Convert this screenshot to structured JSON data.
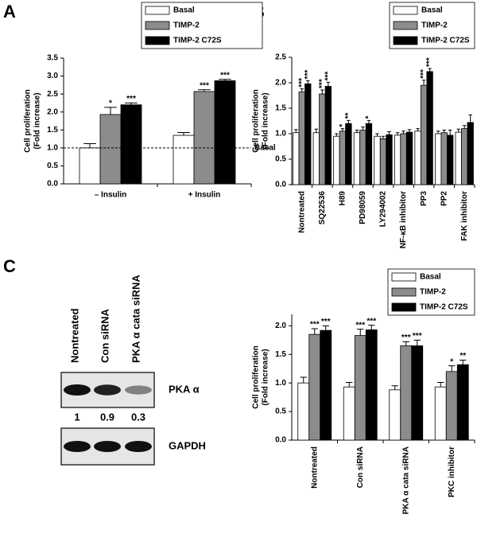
{
  "panel_labels": [
    "A",
    "B",
    "C"
  ],
  "chart_data": [
    {
      "type": "bar",
      "ylabel": [
        "Cell proliferation",
        "(Fold increase)"
      ],
      "categories": [
        "– Insulin",
        "+ Insulin"
      ],
      "series": [
        {
          "name": "Basal",
          "color": "#ffffff",
          "values": [
            1.0,
            1.35
          ],
          "errors": [
            0.12,
            0.08
          ],
          "stars": [
            null,
            null
          ]
        },
        {
          "name": "TIMP-2",
          "color": "#8c8c8c",
          "values": [
            1.93,
            2.57
          ],
          "errors": [
            0.2,
            0.05
          ],
          "stars": [
            "*",
            "***"
          ]
        },
        {
          "name": "TIMP-2 C72S",
          "color": "#000000",
          "values": [
            2.2,
            2.87
          ],
          "errors": [
            0.05,
            0.04
          ],
          "stars": [
            "***",
            "***"
          ]
        }
      ],
      "reference_line": {
        "value": 1.0,
        "label": "Basal"
      },
      "ylim": [
        0,
        3.5
      ],
      "yticks": [
        {
          "value": 0,
          "label": "0.0"
        },
        {
          "value": 0.5,
          "label": "0.5"
        },
        {
          "value": 1,
          "label": "1.0"
        },
        {
          "value": 1.5,
          "label": "1.5"
        },
        {
          "value": 2,
          "label": "2.0"
        },
        {
          "value": 2.5,
          "label": "2.5"
        },
        {
          "value": 3,
          "label": "3.0"
        },
        {
          "value": 3.5,
          "label": "3.5"
        }
      ]
    },
    {
      "type": "bar",
      "ylabel": [
        "Cell proliferation",
        "(Fold increase)"
      ],
      "categories": [
        "Nontreated",
        "SQ22536",
        "H89",
        "PD98059",
        "LY294002",
        "NF-κB inhibitor",
        "PP3",
        "PP2",
        "FAK inhibitor"
      ],
      "series": [
        {
          "name": "Basal",
          "color": "#ffffff",
          "values": [
            1.02,
            1.02,
            0.95,
            1.02,
            0.95,
            0.97,
            1.05,
            1.0,
            1.03
          ],
          "errors": [
            0.06,
            0.07,
            0.05,
            0.05,
            0.05,
            0.05,
            0.05,
            0.05,
            0.06
          ],
          "stars": [
            null,
            null,
            null,
            null,
            null,
            null,
            null,
            null,
            null
          ]
        },
        {
          "name": "TIMP-2",
          "color": "#8c8c8c",
          "values": [
            1.82,
            1.78,
            1.05,
            1.07,
            0.9,
            1.0,
            1.95,
            1.02,
            1.1
          ],
          "errors": [
            0.06,
            0.08,
            0.05,
            0.06,
            0.05,
            0.05,
            0.1,
            0.05,
            0.06
          ],
          "stars": [
            "***",
            "***",
            "*",
            null,
            null,
            null,
            "***",
            null,
            null
          ]
        },
        {
          "name": "TIMP-2 C72S",
          "color": "#000000",
          "values": [
            1.98,
            1.93,
            1.2,
            1.2,
            0.98,
            1.03,
            2.22,
            0.97,
            1.22
          ],
          "errors": [
            0.06,
            0.08,
            0.06,
            0.06,
            0.06,
            0.05,
            0.06,
            0.1,
            0.15
          ],
          "stars": [
            "***",
            "***",
            "**",
            "*",
            null,
            null,
            "***",
            null,
            null
          ]
        }
      ],
      "ylim": [
        0,
        2.5
      ],
      "yticks": [
        {
          "value": 0,
          "label": "0.0"
        },
        {
          "value": 0.5,
          "label": "0.5"
        },
        {
          "value": 1,
          "label": "1.0"
        },
        {
          "value": 1.5,
          "label": "1.5"
        },
        {
          "value": 2,
          "label": "2.0"
        },
        {
          "value": 2.5,
          "label": "2.5"
        }
      ]
    },
    {
      "type": "bar",
      "ylabel": [
        "Cell proliferation",
        "(Fold increase)"
      ],
      "categories": [
        "Nontreated",
        "Con siRNA",
        "PKA α cata siRNA",
        "PKC inhibitor"
      ],
      "series": [
        {
          "name": "Basal",
          "color": "#ffffff",
          "values": [
            1.0,
            0.93,
            0.88,
            0.93
          ],
          "errors": [
            0.1,
            0.08,
            0.07,
            0.08
          ],
          "stars": [
            null,
            null,
            null,
            null
          ]
        },
        {
          "name": "TIMP-2",
          "color": "#8c8c8c",
          "values": [
            1.85,
            1.83,
            1.65,
            1.2
          ],
          "errors": [
            0.1,
            0.11,
            0.07,
            0.1
          ],
          "stars": [
            "***",
            "***",
            "***",
            "*"
          ]
        },
        {
          "name": "TIMP-2 C72S",
          "color": "#000000",
          "values": [
            1.92,
            1.93,
            1.65,
            1.32
          ],
          "errors": [
            0.08,
            0.08,
            0.1,
            0.08
          ],
          "stars": [
            "***",
            "***",
            "***",
            "**"
          ]
        }
      ],
      "ylim": [
        0,
        2.2
      ],
      "yticks": [
        {
          "value": 0,
          "label": "0.0"
        },
        {
          "value": 0.5,
          "label": "0.5"
        },
        {
          "value": 1,
          "label": "1.0"
        },
        {
          "value": 1.5,
          "label": "1.5"
        },
        {
          "value": 2,
          "label": "2.0"
        }
      ]
    }
  ],
  "blot": {
    "lanes": [
      "Nontreated",
      "Con siRNA",
      "PKA α cata siRNA"
    ],
    "rows": [
      {
        "label": "PKA α",
        "quantification": [
          1,
          0.9,
          0.3
        ]
      },
      {
        "label": "GAPDH"
      }
    ]
  }
}
